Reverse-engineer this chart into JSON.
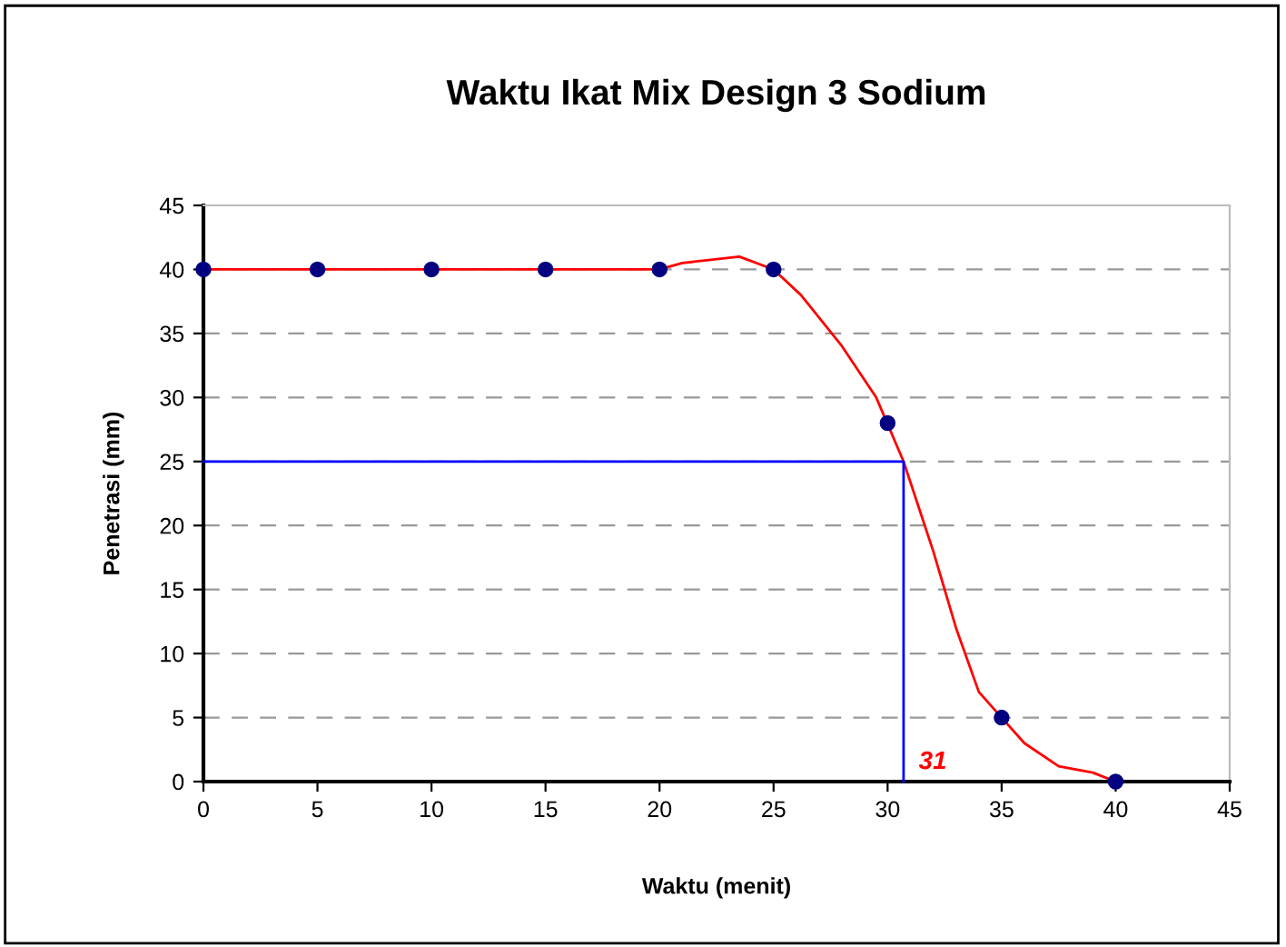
{
  "chart_data": {
    "type": "scatter",
    "title": "Waktu Ikat Mix Design 3 Sodium",
    "xlabel": "Waktu (menit)",
    "ylabel": "Penetrasi (mm)",
    "x": [
      0,
      5,
      10,
      15,
      20,
      25,
      30,
      35,
      40
    ],
    "series": [
      {
        "type": "line",
        "color": "#ff0000",
        "marker": "none",
        "x": [
          0,
          20,
          21,
          23.5,
          25,
          26.2,
          28,
          29.5,
          30.7,
          32,
          33,
          34,
          35,
          36,
          37.5,
          39,
          40
        ],
        "values": [
          40,
          40,
          40.5,
          41,
          40,
          38,
          34,
          30,
          25,
          18,
          12,
          7,
          5,
          3,
          1.2,
          0.7,
          0
        ]
      },
      {
        "type": "line",
        "color": "#0000ff",
        "marker": "none",
        "x": [
          0,
          30.7,
          30.7
        ],
        "values": [
          25,
          25,
          0
        ]
      },
      {
        "color": "#000080",
        "marker": "circle",
        "values": [
          40,
          40,
          40,
          40,
          40,
          40,
          28,
          5,
          0
        ]
      }
    ],
    "annotations": [
      {
        "text": "31",
        "x": 30.7,
        "y": 0
      }
    ],
    "xlim": [
      0,
      45
    ],
    "ylim": [
      0,
      45
    ],
    "xticks": [
      0,
      5,
      10,
      15,
      20,
      25,
      30,
      35,
      40,
      45
    ],
    "yticks": [
      0,
      5,
      10,
      15,
      20,
      25,
      30,
      35,
      40,
      45
    ],
    "grid": "y",
    "legend": false
  }
}
